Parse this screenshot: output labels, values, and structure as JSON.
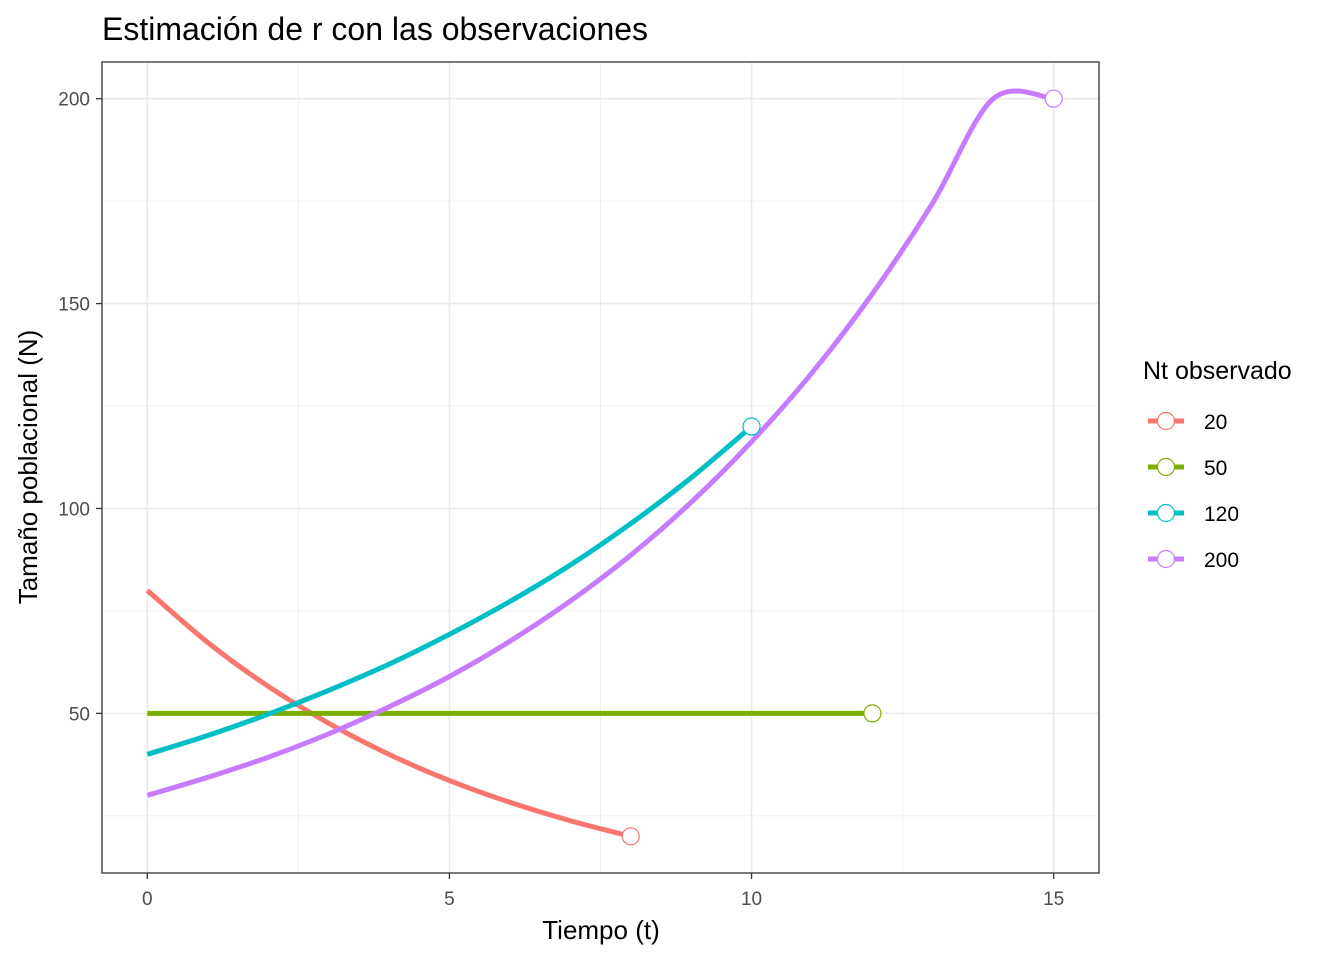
{
  "chart_data": {
    "type": "line",
    "title": "Estimación de r con las observaciones",
    "xlabel": "Tiempo (t)",
    "ylabel": "Tamaño poblacional (N)",
    "xlim": [
      -0.75,
      15.75
    ],
    "ylim": [
      11.05,
      208.95
    ],
    "x_ticks": [
      0,
      5,
      10,
      15
    ],
    "x_tick_labels": [
      "0",
      "5",
      "10",
      "15"
    ],
    "y_ticks": [
      50,
      100,
      150,
      200
    ],
    "y_tick_labels": [
      "50",
      "100",
      "150",
      "200"
    ],
    "grid": true,
    "legend": {
      "title": "Nt observado",
      "position": "right"
    },
    "series": [
      {
        "name": "20",
        "color": "#F8766D",
        "x": [
          0,
          1,
          2,
          3,
          4,
          5,
          6,
          7,
          8
        ],
        "values": [
          80,
          67.3,
          56.6,
          47.6,
          40.0,
          33.6,
          28.3,
          23.8,
          20
        ],
        "observed": {
          "x": 8,
          "y": 20
        }
      },
      {
        "name": "50",
        "color": "#7CAE00",
        "x": [
          0,
          1,
          2,
          3,
          4,
          5,
          6,
          7,
          8,
          9,
          10,
          11,
          12
        ],
        "values": [
          50,
          50,
          50,
          50,
          50,
          50,
          50,
          50,
          50,
          50,
          50,
          50,
          50
        ],
        "observed": {
          "x": 12,
          "y": 50
        }
      },
      {
        "name": "120",
        "color": "#00BFC4",
        "x": [
          0,
          1,
          2,
          3,
          4,
          5,
          6,
          7,
          8,
          9,
          10
        ],
        "values": [
          40,
          44.6,
          49.8,
          55.6,
          62.0,
          69.3,
          77.3,
          86.2,
          96.3,
          107.5,
          120
        ],
        "observed": {
          "x": 10,
          "y": 120
        }
      },
      {
        "name": "200",
        "color": "#C77CFF",
        "x": [
          0,
          1,
          2,
          3,
          4,
          5,
          6,
          7,
          8,
          9,
          10,
          11,
          12,
          13,
          14,
          15
        ],
        "values": [
          30,
          34.4,
          39.3,
          45.0,
          51.6,
          59.0,
          67.6,
          77.4,
          88.6,
          101.5,
          116.3,
          133.1,
          152.4,
          174.6,
          200,
          200
        ],
        "observed": {
          "x": 15,
          "y": 200
        }
      }
    ]
  }
}
